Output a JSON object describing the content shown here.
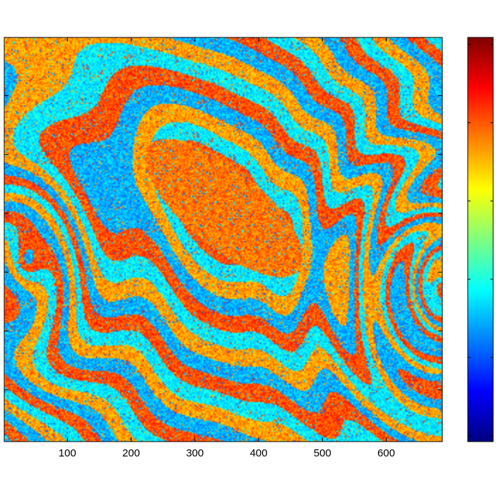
{
  "chart_data": {
    "type": "heatmap",
    "title": "",
    "xlabel": "",
    "ylabel": "",
    "xlim": [
      1,
      688
    ],
    "ylim": [
      1,
      688
    ],
    "xticks": [
      100,
      200,
      300,
      400,
      500,
      600
    ],
    "xtick_labels": [
      "100",
      "200",
      "300",
      "400",
      "500",
      "600"
    ],
    "yticks_shown_labels": false,
    "colormap": "jet",
    "colormap_stops": [
      "#00007f",
      "#0000ff",
      "#007fff",
      "#00ffff",
      "#7fff7f",
      "#ffff00",
      "#ff7f00",
      "#ff0000",
      "#7f0000"
    ],
    "colorbar": {
      "position": "right",
      "tick_labels_shown": false,
      "tick_count": 6
    },
    "pattern": {
      "description_free": true,
      "dominant_colors": [
        "#0a2fcf",
        "#1e90ff",
        "#2fd8e8",
        "#f08a24",
        "#f4a51c",
        "#d62a12"
      ],
      "noise": "speckle"
    }
  }
}
